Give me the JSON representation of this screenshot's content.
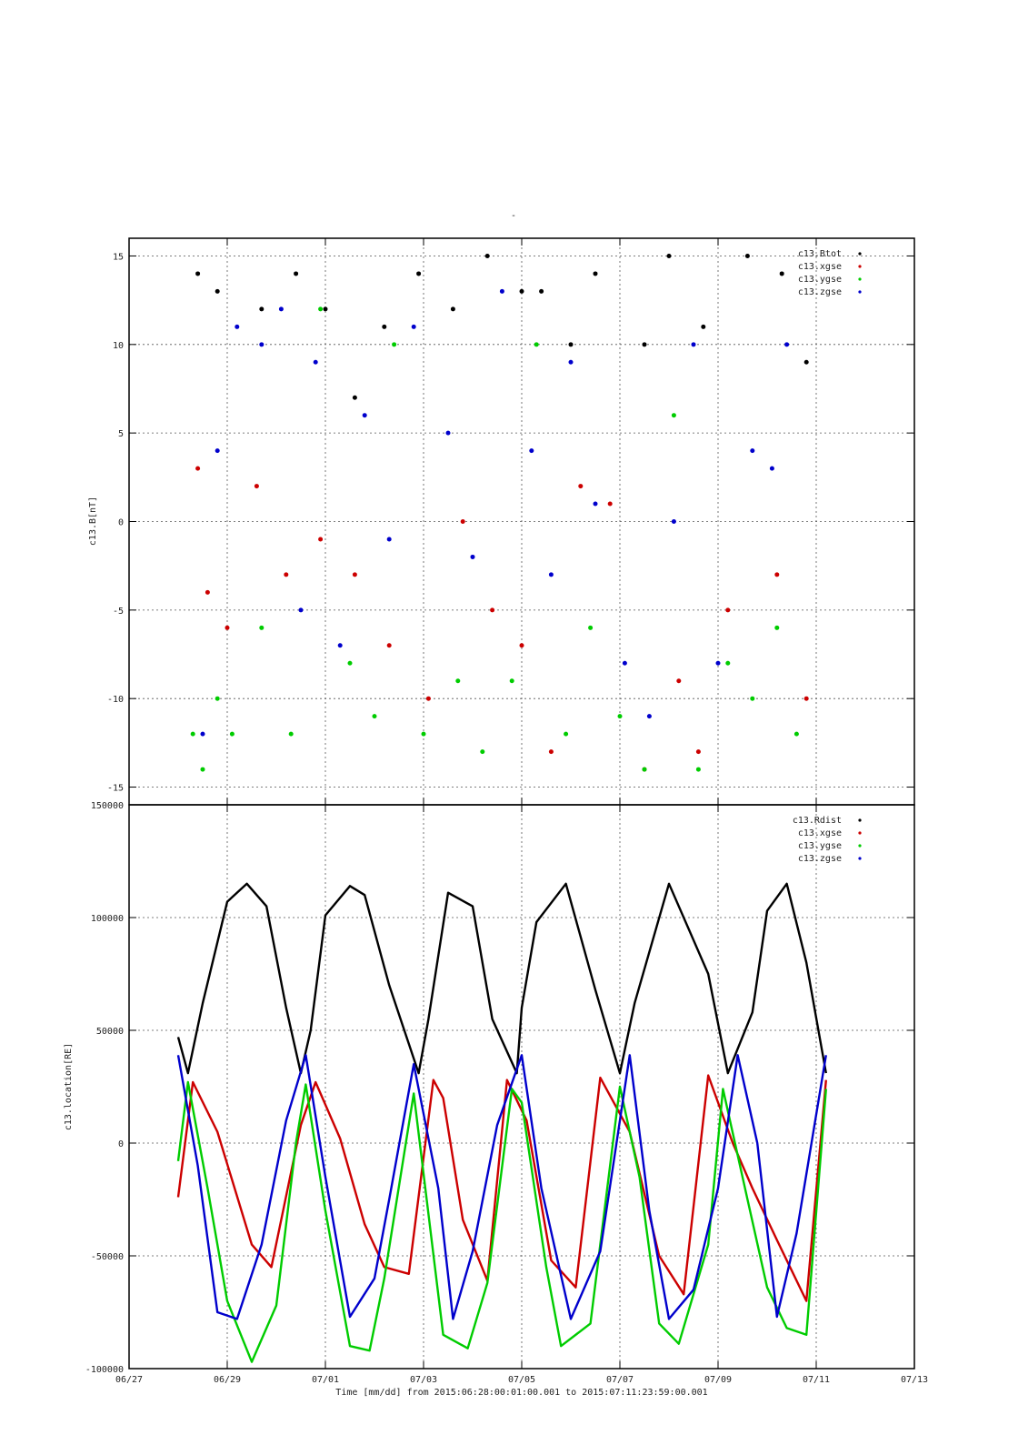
{
  "figure": {
    "header": "-",
    "xlabel": "Time [mm/dd]  from 2015:06:28:00:01:00.001  to  2015:07:11:23:59:00.001",
    "xticks": [
      "06/27",
      "06/29",
      "07/01",
      "07/03",
      "07/05",
      "07/07",
      "07/09",
      "07/11",
      "07/13"
    ]
  },
  "chart_data": [
    {
      "type": "scatter",
      "title": "",
      "ylabel": "c13.B[nT]",
      "xlabel": "Time [mm/dd]",
      "xlim_days_after_0627": [
        0,
        16
      ],
      "ylim": [
        -16,
        16
      ],
      "yticks": [
        15,
        10,
        5,
        0,
        -5,
        -10,
        -15
      ],
      "grid": true,
      "legend_position": "top-right",
      "series": [
        {
          "name": "c13.Btot",
          "color": "#000000",
          "x": [
            1.4,
            1.8,
            2.7,
            3.4,
            4.0,
            4.6,
            5.2,
            5.9,
            6.6,
            7.3,
            8.0,
            8.4,
            9.0,
            9.5,
            10.5,
            11.0,
            11.7,
            12.6,
            13.3,
            13.8
          ],
          "y": [
            14,
            13,
            12,
            14,
            12,
            7,
            11,
            14,
            12,
            15,
            13,
            13,
            10,
            14,
            10,
            15,
            11,
            15,
            14,
            9
          ]
        },
        {
          "name": "c13.xgse",
          "color": "#cc0000",
          "x": [
            1.4,
            1.6,
            2.0,
            2.6,
            3.2,
            3.9,
            4.6,
            5.3,
            6.1,
            6.8,
            7.4,
            8.0,
            8.6,
            9.2,
            9.8,
            10.5,
            11.2,
            11.6,
            12.2,
            13.2,
            13.8
          ],
          "y": [
            3,
            -4,
            -6,
            2,
            -3,
            -1,
            -3,
            -7,
            -10,
            0,
            -5,
            -7,
            -13,
            2,
            1,
            -14,
            -9,
            -13,
            -5,
            -3,
            -10
          ]
        },
        {
          "name": "c13.ygse",
          "color": "#00cc00",
          "x": [
            1.3,
            1.5,
            1.8,
            2.1,
            2.7,
            3.3,
            3.9,
            4.5,
            5.0,
            5.4,
            6.0,
            6.7,
            7.2,
            7.8,
            8.3,
            8.9,
            9.4,
            10.0,
            10.5,
            11.1,
            11.6,
            12.2,
            12.7,
            13.2,
            13.6
          ],
          "y": [
            -12,
            -14,
            -10,
            -12,
            -6,
            -12,
            12,
            -8,
            -11,
            10,
            -12,
            -9,
            -13,
            -9,
            10,
            -12,
            -6,
            -11,
            -14,
            6,
            -14,
            -8,
            -10,
            -6,
            -12
          ]
        },
        {
          "name": "c13.zgse",
          "color": "#0000cc",
          "x": [
            1.5,
            1.8,
            2.2,
            2.7,
            3.1,
            3.5,
            3.8,
            4.3,
            4.8,
            5.3,
            5.8,
            6.5,
            7.0,
            7.6,
            8.2,
            8.6,
            9.0,
            9.5,
            10.1,
            10.6,
            11.1,
            11.5,
            12.0,
            12.7,
            13.1,
            13.4
          ],
          "y": [
            -12,
            4,
            11,
            10,
            12,
            -5,
            9,
            -7,
            6,
            -1,
            11,
            5,
            -2,
            13,
            4,
            -3,
            9,
            1,
            -8,
            -11,
            0,
            10,
            -8,
            4,
            3,
            10
          ]
        }
      ]
    },
    {
      "type": "line",
      "title": "",
      "ylabel": "c13.location[RE]",
      "xlabel": "Time [mm/dd]",
      "xlim_days_after_0627": [
        0,
        16
      ],
      "ylim": [
        -100000,
        150000
      ],
      "yticks": [
        150000,
        100000,
        50000,
        0,
        -50000,
        -100000
      ],
      "grid": true,
      "legend_position": "top-right",
      "series": [
        {
          "name": "c13.Rdist",
          "color": "#000000",
          "x": [
            1.0,
            1.2,
            1.5,
            2.0,
            2.4,
            2.8,
            3.2,
            3.5,
            3.7,
            4.0,
            4.5,
            4.8,
            5.3,
            5.9,
            6.1,
            6.5,
            7.0,
            7.4,
            7.9,
            8.0,
            8.3,
            8.9,
            9.5,
            10.0,
            10.3,
            11.0,
            11.8,
            12.2,
            12.7,
            13.0,
            13.4,
            13.8,
            14.2
          ],
          "y": [
            47000,
            31000,
            62000,
            107000,
            115000,
            105000,
            60000,
            31000,
            50000,
            101000,
            114000,
            110000,
            70000,
            31000,
            55000,
            111000,
            105000,
            55000,
            31000,
            60000,
            98000,
            115000,
            68000,
            31000,
            62000,
            115000,
            75000,
            31000,
            58000,
            103000,
            115000,
            80000,
            31000
          ]
        },
        {
          "name": "c13.xgse",
          "color": "#cc0000",
          "x": [
            1.0,
            1.3,
            1.8,
            2.5,
            2.9,
            3.5,
            3.8,
            4.3,
            4.8,
            5.2,
            5.7,
            6.2,
            6.4,
            6.8,
            7.3,
            7.7,
            8.1,
            8.6,
            9.1,
            9.6,
            10.2,
            10.8,
            11.3,
            11.8,
            12.3,
            12.7,
            13.2,
            13.8,
            14.2
          ],
          "y": [
            -24000,
            27000,
            5000,
            -45000,
            -55000,
            8000,
            27000,
            2000,
            -36000,
            -55000,
            -58000,
            28000,
            20000,
            -34000,
            -61000,
            28000,
            10000,
            -52000,
            -64000,
            29000,
            5000,
            -50000,
            -67000,
            30000,
            0,
            -20000,
            -43000,
            -70000,
            28000
          ]
        },
        {
          "name": "c13.ygse",
          "color": "#00cc00",
          "x": [
            1.0,
            1.2,
            1.6,
            2.0,
            2.5,
            3.0,
            3.4,
            3.6,
            4.0,
            4.5,
            4.9,
            5.2,
            5.8,
            6.4,
            6.9,
            7.3,
            7.8,
            8.0,
            8.5,
            8.8,
            9.4,
            10.0,
            10.4,
            10.8,
            11.2,
            11.8,
            12.1,
            12.6,
            13.0,
            13.4,
            13.8,
            14.2
          ],
          "y": [
            -8000,
            27000,
            -20000,
            -70000,
            -97000,
            -72000,
            0,
            26000,
            -30000,
            -90000,
            -92000,
            -60000,
            22000,
            -85000,
            -91000,
            -62000,
            24000,
            18000,
            -55000,
            -90000,
            -80000,
            25000,
            -15000,
            -80000,
            -89000,
            -45000,
            24000,
            -25000,
            -64000,
            -82000,
            -85000,
            24000
          ]
        },
        {
          "name": "c13.zgse",
          "color": "#0000cc",
          "x": [
            1.0,
            1.4,
            1.8,
            2.2,
            2.7,
            3.2,
            3.6,
            4.0,
            4.5,
            5.0,
            5.3,
            5.8,
            6.3,
            6.6,
            7.0,
            7.5,
            8.0,
            8.4,
            9.0,
            9.6,
            10.2,
            10.6,
            11.0,
            11.5,
            12.0,
            12.4,
            12.8,
            13.2,
            13.6,
            14.2
          ],
          "y": [
            39000,
            -10000,
            -75000,
            -78000,
            -45000,
            10000,
            39000,
            -15000,
            -77000,
            -60000,
            -25000,
            35000,
            -20000,
            -78000,
            -48000,
            8000,
            39000,
            -20000,
            -78000,
            -48000,
            39000,
            -30000,
            -78000,
            -65000,
            -20000,
            39000,
            0,
            -77000,
            -40000,
            39000
          ]
        }
      ]
    }
  ]
}
